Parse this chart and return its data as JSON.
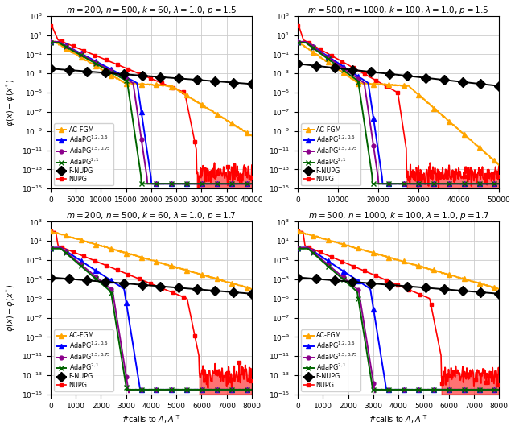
{
  "subplots": [
    {
      "title": "$m = 200$, $n = 500$, $k = 60$, $\\lambda = 1.0$, $p = 1.5$",
      "xlim": [
        0,
        40000
      ],
      "ylim": [
        1e-15,
        1000.0
      ],
      "xticks": [
        0,
        5000,
        10000,
        15000,
        20000,
        25000,
        30000,
        35000,
        40000
      ],
      "fnupg_start": -2.5,
      "fnupg_end": -4.1,
      "nupg_cliff": 29000,
      "nupg_floor_log": -13.5,
      "acfgm_plateau_start": 0.37,
      "acfgm_plateau_end": 0.6,
      "acfgm_plateau_log": -4.0,
      "acfgm_end_log": -9.5,
      "adapg12_cliff": 0.5,
      "adapg15_cliff": 0.48,
      "adapg21_cliff": 0.45
    },
    {
      "title": "$m = 500$, $n = 1000$, $k = 100$, $\\lambda = 1.0$, $p = 1.5$",
      "xlim": [
        0,
        50000
      ],
      "ylim": [
        1e-15,
        1000.0
      ],
      "xticks": [
        0,
        10000,
        20000,
        30000,
        40000,
        50000
      ],
      "fnupg_start": -2.0,
      "fnupg_end": -4.3,
      "nupg_cliff": 27000,
      "nupg_floor_log": -13.5,
      "acfgm_plateau_start": 0.3,
      "acfgm_plateau_end": 0.55,
      "acfgm_plateau_log": -4.3,
      "acfgm_end_log": -12.5,
      "adapg12_cliff": 0.42,
      "adapg15_cliff": 0.4,
      "adapg21_cliff": 0.37
    },
    {
      "title": "$m = 200$, $n = 500$, $k = 60$, $\\lambda = 1.0$, $p = 1.7$",
      "xlim": [
        0,
        8000
      ],
      "ylim": [
        1e-15,
        1000.0
      ],
      "xticks": [
        0,
        1000,
        2000,
        3000,
        4000,
        5000,
        6000,
        7000,
        8000
      ],
      "fnupg_start": -2.8,
      "fnupg_end": -4.5,
      "nupg_cliff": 5900,
      "nupg_floor_log": -13.0,
      "acfgm_plateau_start": 0.0,
      "acfgm_plateau_end": 0.0,
      "acfgm_plateau_log": -4.0,
      "acfgm_end_log": -4.0,
      "adapg12_cliff": 0.445,
      "adapg15_cliff": 0.39,
      "adapg21_cliff": 0.38
    },
    {
      "title": "$m = 500$, $n = 1000$, $k = 100$, $\\lambda = 1.0$, $p = 1.7$",
      "xlim": [
        0,
        8000
      ],
      "ylim": [
        1e-15,
        1000.0
      ],
      "xticks": [
        0,
        1000,
        2000,
        3000,
        4000,
        5000,
        6000,
        7000,
        8000
      ],
      "fnupg_start": -2.8,
      "fnupg_end": -4.5,
      "nupg_cliff": 5700,
      "nupg_floor_log": -13.0,
      "acfgm_plateau_start": 0.0,
      "acfgm_plateau_end": 0.0,
      "acfgm_plateau_log": -4.0,
      "acfgm_end_log": -4.0,
      "adapg12_cliff": 0.44,
      "adapg15_cliff": 0.385,
      "adapg21_cliff": 0.375
    }
  ],
  "ylabel": "$\\varphi(x) - \\varphi(x^*)$",
  "xlabel": "#calls to $A, A^\\top$"
}
